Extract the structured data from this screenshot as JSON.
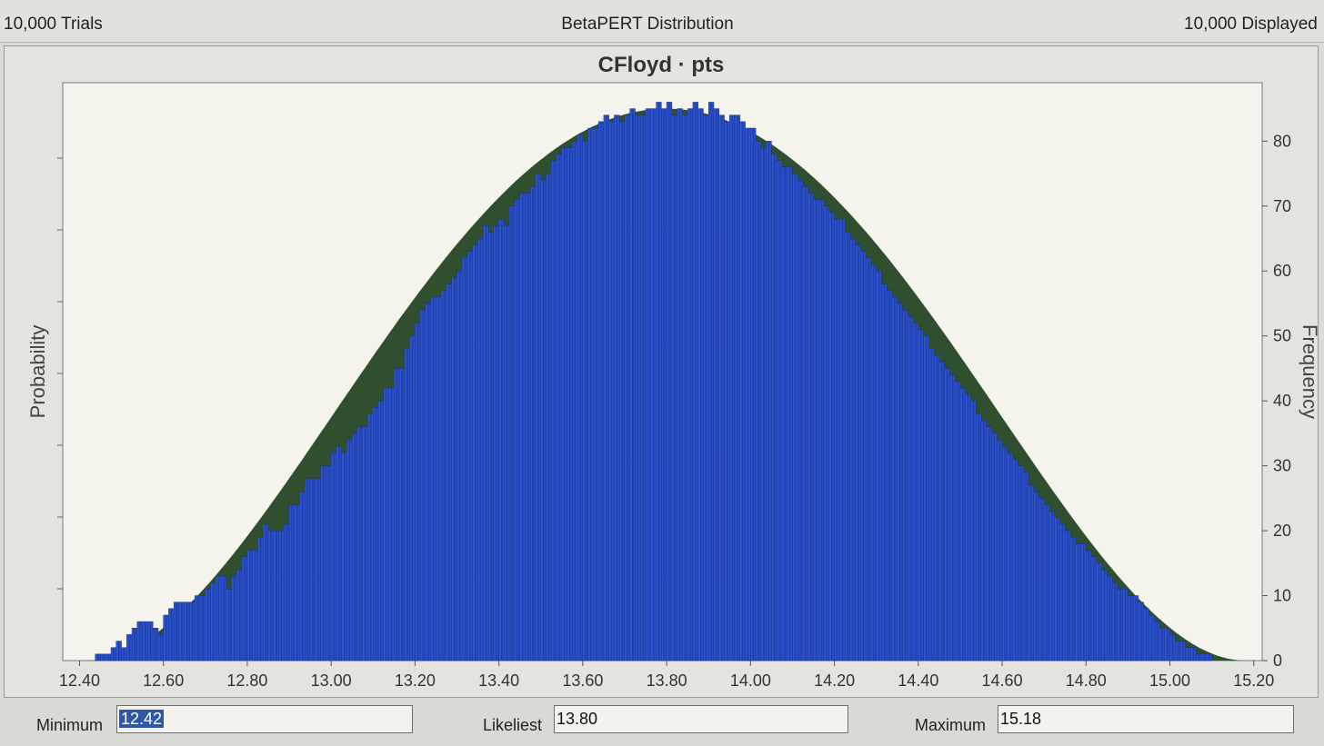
{
  "header": {
    "trials_text": "10,000 Trials",
    "distribution_text": "BetaPERT Distribution",
    "displayed_text": "10,000 Displayed"
  },
  "chart_data": {
    "type": "bar",
    "title": "CFloyd · pts",
    "ylabel_left": "Probability",
    "ylabel_right": "Frequency",
    "xlim": [
      12.36,
      15.22
    ],
    "ylim": [
      0,
      89
    ],
    "x_ticks": [
      "12.40",
      "12.60",
      "12.80",
      "13.00",
      "13.20",
      "13.40",
      "13.60",
      "13.80",
      "14.00",
      "14.20",
      "14.40",
      "14.60",
      "14.80",
      "15.00",
      "15.20"
    ],
    "y_ticks": [
      "0",
      "10",
      "20",
      "30",
      "40",
      "50",
      "60",
      "70",
      "80"
    ],
    "bin_start": 12.4,
    "bin_width": 0.0125,
    "frequencies": [
      0,
      0,
      0,
      1,
      1,
      1,
      2,
      3,
      2,
      4,
      5,
      6,
      6,
      6,
      5,
      4,
      7,
      8,
      9,
      9,
      9,
      9,
      10,
      10,
      11,
      12,
      13,
      13,
      11,
      13,
      14,
      16,
      17,
      17,
      19,
      21,
      20,
      20,
      20,
      21,
      24,
      24,
      26,
      28,
      28,
      28,
      30,
      30,
      32,
      33,
      32,
      34,
      35,
      36,
      36,
      38,
      39,
      40,
      42,
      42,
      45,
      45,
      48,
      50,
      52,
      54,
      55,
      56,
      56,
      57,
      58,
      59,
      60,
      62,
      63,
      64,
      65,
      67,
      66,
      67,
      68,
      67,
      70,
      71,
      72,
      72,
      73,
      75,
      74,
      75,
      77,
      78,
      79,
      79,
      80,
      81,
      80,
      82,
      82,
      83,
      84,
      83,
      84,
      83,
      84,
      85,
      84,
      84,
      85,
      85,
      86,
      85,
      86,
      84,
      85,
      84,
      85,
      86,
      85,
      84,
      86,
      85,
      84,
      83,
      84,
      84,
      83,
      82,
      82,
      80,
      79,
      80,
      78,
      77,
      76,
      76,
      75,
      74,
      73,
      72,
      71,
      71,
      70,
      69,
      68,
      68,
      66,
      65,
      64,
      63,
      62,
      61,
      60,
      58,
      57,
      56,
      55,
      54,
      53,
      52,
      51,
      50,
      48,
      47,
      46,
      45,
      44,
      43,
      42,
      41,
      40,
      38,
      37,
      36,
      35,
      34,
      33,
      32,
      31,
      30,
      29,
      27,
      26,
      25,
      24,
      23,
      22,
      21,
      20,
      19,
      18,
      18,
      17,
      16,
      15,
      14,
      13,
      12,
      11,
      11,
      10,
      10,
      9,
      8,
      7,
      6,
      5,
      5,
      4,
      3,
      3,
      2,
      2,
      1,
      1,
      1,
      0
    ],
    "curve_peak": 85,
    "bar_color": "#2a4fc4",
    "curve_color": "#2f4f2f",
    "background": "#f4f4ec",
    "grid": false
  },
  "footer": {
    "minimum_label": "Minimum",
    "minimum_value": "12.42",
    "likeliest_label": "Likeliest",
    "likeliest_value": "13.80",
    "maximum_label": "Maximum",
    "maximum_value": "15.18"
  }
}
